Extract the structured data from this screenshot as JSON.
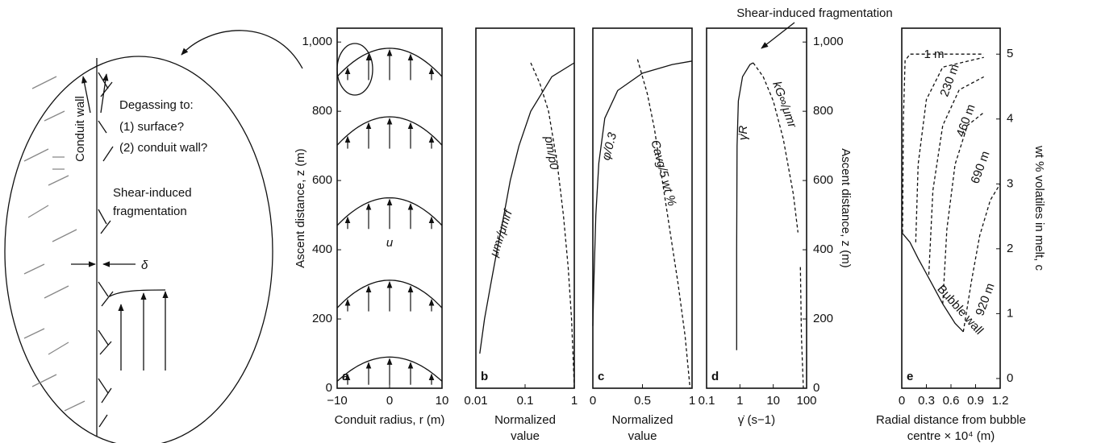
{
  "annotation": "Shear-induced fragmentation",
  "diagram": {
    "wall_label": "Conduit wall",
    "degassing": "Degassing to:",
    "option1": "(1) surface?",
    "option2": "(2) conduit wall?",
    "fragmentation": [
      "Shear-induced",
      "fragmentation"
    ],
    "delta": "δ"
  },
  "chart_data": [
    {
      "type": "profile",
      "panel": "a",
      "xscale": "linear",
      "xlim": [
        -10,
        10
      ],
      "ylim": [
        0,
        1040
      ],
      "xticks": [
        {
          "value": -10,
          "label": "−10"
        },
        0,
        10
      ],
      "yticks": [
        0,
        200,
        400,
        600,
        800,
        {
          "value": 1000,
          "label": "1,000"
        }
      ],
      "yaxis": "left",
      "xlabel": [
        "Conduit radius, r (m)"
      ],
      "ylabel": "Ascent distance, z (m)",
      "annotation": "u",
      "profiles": [
        {
          "base": 900,
          "peak": 982
        },
        {
          "base": 702,
          "peak": 784
        },
        {
          "base": 470,
          "peak": 550
        },
        {
          "base": 232,
          "peak": 312
        },
        {
          "base": 20,
          "peak": 90
        }
      ]
    },
    {
      "type": "line",
      "panel": "b",
      "xscale": "log",
      "xlim": [
        0.01,
        1
      ],
      "ylim": [
        0,
        1040
      ],
      "xticks": [
        0.01,
        0.1,
        1
      ],
      "yaxis": "none",
      "xlabel": [
        "Normalized",
        "value"
      ],
      "series": [
        {
          "name": "μmr/μmrf",
          "style": "solid",
          "x": [
            0.012,
            0.015,
            0.02,
            0.027,
            0.037,
            0.05,
            0.075,
            0.13,
            0.35,
            1
          ],
          "values": [
            100,
            200,
            300,
            400,
            500,
            600,
            700,
            800,
            900,
            940
          ]
        },
        {
          "name": "pm/p0",
          "style": "dashed",
          "x": [
            0.13,
            0.2,
            0.3,
            0.45,
            0.6,
            0.75,
            0.88,
            0.97,
            1
          ],
          "values": [
            940,
            880,
            800,
            650,
            500,
            350,
            200,
            50,
            0
          ]
        }
      ]
    },
    {
      "type": "line",
      "panel": "c",
      "xscale": "linear",
      "xlim": [
        0,
        1
      ],
      "ylim": [
        0,
        1040
      ],
      "xticks": [
        0,
        0.5,
        1
      ],
      "yaxis": "none",
      "xlabel": [
        "Normalized",
        "value"
      ],
      "series": [
        {
          "name": "φ/0.3",
          "style": "solid",
          "x": [
            0,
            0.01,
            0.03,
            0.06,
            0.12,
            0.25,
            0.5,
            0.8,
            1
          ],
          "values": [
            180,
            300,
            500,
            650,
            780,
            860,
            910,
            935,
            945
          ]
        },
        {
          "name": "Cavg/5 wt %",
          "style": "dashed",
          "x": [
            0.45,
            0.55,
            0.62,
            0.7,
            0.78,
            0.86,
            0.93,
            0.98
          ],
          "values": [
            950,
            850,
            750,
            600,
            450,
            300,
            150,
            0
          ]
        }
      ]
    },
    {
      "type": "line",
      "panel": "d",
      "xscale": "log",
      "xlim": [
        0.1,
        100
      ],
      "ylim": [
        0,
        1040
      ],
      "xticks": [
        0.1,
        1,
        10,
        100
      ],
      "yticks": [
        0,
        200,
        400,
        600,
        800,
        {
          "value": 1000,
          "label": "1,000"
        }
      ],
      "yaxis": "right",
      "xlabel": [
        "γ̇ (s−1)"
      ],
      "ylabel": "Ascent distance, z (m)",
      "series": [
        {
          "name": "γ̇R",
          "style": "solid",
          "x": [
            0.8,
            0.8,
            0.82,
            0.9,
            1.2,
            2,
            2.5
          ],
          "values": [
            110,
            400,
            700,
            830,
            900,
            935,
            940
          ]
        },
        {
          "name": "kG∞/μmr",
          "style": "dashed",
          "x": [
            2.5,
            5,
            10,
            20,
            40,
            55,
            null,
            65,
            70,
            80
          ],
          "values": [
            940,
            900,
            830,
            720,
            560,
            450,
            null,
            350,
            150,
            0
          ]
        }
      ]
    },
    {
      "type": "line",
      "panel": "e",
      "xscale": "linear",
      "xlim": [
        0,
        1.2
      ],
      "ylim": [
        -0.15,
        5.4
      ],
      "xticks": [
        0,
        0.3,
        0.6,
        0.9,
        1.2
      ],
      "yticks": [
        0,
        1,
        2,
        3,
        4,
        5
      ],
      "yaxis": "right",
      "xlabel": [
        "Radial distance from bubble",
        "centre × 10⁴ (m)"
      ],
      "ylabel": "wt % volatiles in melt, c",
      "series": [
        {
          "name": "Bubble wall",
          "style": "solid",
          "x": [
            0,
            0.1,
            0.2,
            0.35,
            0.5,
            0.65,
            0.75
          ],
          "values": [
            2.25,
            2.1,
            1.85,
            1.5,
            1.15,
            0.85,
            0.72
          ]
        },
        {
          "name": "1 m",
          "style": "dashed",
          "x": [
            0.01,
            0.02,
            0.04,
            0.1,
            1
          ],
          "values": [
            2.25,
            4,
            4.9,
            5,
            5
          ]
        },
        {
          "name": "230 m",
          "style": "dashed",
          "x": [
            0.17,
            0.2,
            0.3,
            0.5,
            1
          ],
          "values": [
            2.1,
            3.3,
            4.3,
            4.8,
            4.95
          ]
        },
        {
          "name": "460 m",
          "style": "dashed",
          "x": [
            0.33,
            0.38,
            0.5,
            0.7,
            1
          ],
          "values": [
            1.6,
            2.9,
            3.9,
            4.45,
            4.65
          ]
        },
        {
          "name": "690 m",
          "style": "dashed",
          "x": [
            0.5,
            0.55,
            0.65,
            0.8,
            1
          ],
          "values": [
            1.15,
            2.3,
            3.3,
            3.9,
            4.1
          ]
        },
        {
          "name": "920 m",
          "style": "dashed",
          "x": [
            0.75,
            0.85,
            0.95,
            1.08,
            1.2
          ],
          "values": [
            0.72,
            1.5,
            2.2,
            2.75,
            3
          ]
        }
      ]
    }
  ]
}
